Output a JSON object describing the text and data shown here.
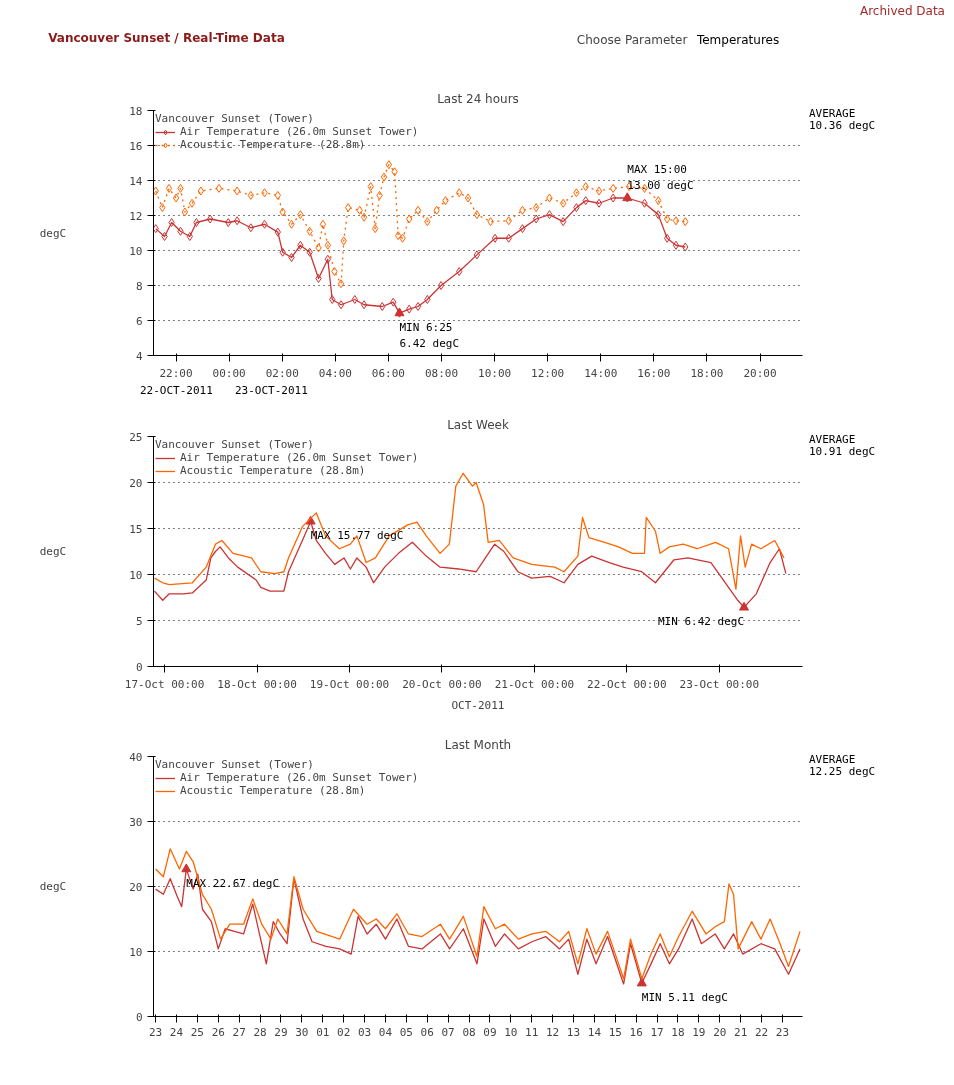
{
  "chart_data": [
    {
      "type": "other",
      "title": "Vancouver Sunset / Real-Time Data",
      "annotations": [
        "Archived Data",
        "Choose Parameter",
        "Temperatures"
      ]
    },
    {
      "type": "line",
      "title": "Last 24 hours",
      "ylabel": "degC",
      "legend_title": "Vancouver Sunset (Tower)",
      "legend": "top left",
      "grid": "y",
      "marker": "diamond",
      "xlim": [
        "2011-10-22T21:09",
        "2011-10-23T21:36"
      ],
      "ylim": [
        4,
        18
      ],
      "yticks": [
        4,
        6,
        8,
        10,
        12,
        14,
        16,
        18
      ],
      "xticks": [
        {
          "value": "2011-10-22T22:00",
          "label": "22:00"
        },
        {
          "value": "2011-10-23T00:00",
          "label": "00:00"
        },
        {
          "value": "2011-10-23T02:00",
          "label": "02:00"
        },
        {
          "value": "2011-10-23T04:00",
          "label": "04:00"
        },
        {
          "value": "2011-10-23T06:00",
          "label": "06:00"
        },
        {
          "value": "2011-10-23T08:00",
          "label": "08:00"
        },
        {
          "value": "2011-10-23T10:00",
          "label": "10:00"
        },
        {
          "value": "2011-10-23T12:00",
          "label": "12:00"
        },
        {
          "value": "2011-10-23T14:00",
          "label": "14:00"
        },
        {
          "value": "2011-10-23T16:00",
          "label": "16:00"
        },
        {
          "value": "2011-10-23T18:00",
          "label": "18:00"
        },
        {
          "value": "2011-10-23T20:00",
          "label": "20:00"
        }
      ],
      "series": [
        {
          "name": "Air Temperature (26.0m Sunset Tower)",
          "color": "#cc3333",
          "line_style": "solid",
          "x": [
            "2011-10-22T21:14",
            "2011-10-22T21:34",
            "2011-10-22T21:50",
            "2011-10-22T22:10",
            "2011-10-22T22:31",
            "2011-10-22T22:46",
            "2011-10-22T23:17",
            "2011-10-22T23:58",
            "2011-10-23T00:18",
            "2011-10-23T00:49",
            "2011-10-23T01:20",
            "2011-10-23T01:50",
            "2011-10-23T02:01",
            "2011-10-23T02:21",
            "2011-10-23T02:41",
            "2011-10-23T03:02",
            "2011-10-23T03:22",
            "2011-10-23T03:43",
            "2011-10-23T03:53",
            "2011-10-23T04:13",
            "2011-10-23T04:44",
            "2011-10-23T05:05",
            "2011-10-23T05:46",
            "2011-10-23T06:11",
            "2011-10-23T06:25",
            "2011-10-23T06:47",
            "2011-10-23T07:07",
            "2011-10-23T07:28",
            "2011-10-23T07:59",
            "2011-10-23T08:40",
            "2011-10-23T09:20",
            "2011-10-23T10:01",
            "2011-10-23T10:32",
            "2011-10-23T11:03",
            "2011-10-23T11:34",
            "2011-10-23T12:04",
            "2011-10-23T12:35",
            "2011-10-23T13:05",
            "2011-10-23T13:26",
            "2011-10-23T13:56",
            "2011-10-23T14:28",
            "2011-10-23T15:00",
            "2011-10-23T15:39",
            "2011-10-23T16:10",
            "2011-10-23T16:30",
            "2011-10-23T16:50",
            "2011-10-23T17:11"
          ],
          "values": [
            11.25,
            10.8,
            11.6,
            11.1,
            10.8,
            11.6,
            11.8,
            11.6,
            11.7,
            11.3,
            11.5,
            11.05,
            9.9,
            9.6,
            10.3,
            9.9,
            8.4,
            9.5,
            7.2,
            6.9,
            7.2,
            6.9,
            6.8,
            7.05,
            6.42,
            6.65,
            6.8,
            7.2,
            8.0,
            8.8,
            9.75,
            10.7,
            10.7,
            11.25,
            11.8,
            12.05,
            11.65,
            12.45,
            12.85,
            12.7,
            13.0,
            13.0,
            12.7,
            12.05,
            10.7,
            10.3,
            10.2
          ]
        },
        {
          "name": "Acoustic Temperature (28.8m)",
          "color": "#ff6600",
          "line_style": "dotted",
          "x": [
            "2011-10-22T21:14",
            "2011-10-22T21:29",
            "2011-10-22T21:44",
            "2011-10-22T22:00",
            "2011-10-22T22:10",
            "2011-10-22T22:20",
            "2011-10-22T22:36",
            "2011-10-22T22:56",
            "2011-10-22T23:37",
            "2011-10-23T00:18",
            "2011-10-23T00:49",
            "2011-10-23T01:20",
            "2011-10-23T01:50",
            "2011-10-23T02:01",
            "2011-10-23T02:21",
            "2011-10-23T02:41",
            "2011-10-23T03:02",
            "2011-10-23T03:22",
            "2011-10-23T03:32",
            "2011-10-23T03:43",
            "2011-10-23T03:58",
            "2011-10-23T04:13",
            "2011-10-23T04:19",
            "2011-10-23T04:29",
            "2011-10-23T04:55",
            "2011-10-23T05:05",
            "2011-10-23T05:20",
            "2011-10-23T05:30",
            "2011-10-23T05:40",
            "2011-10-23T05:50",
            "2011-10-23T06:01",
            "2011-10-23T06:14",
            "2011-10-23T06:22",
            "2011-10-23T06:32",
            "2011-10-23T06:47",
            "2011-10-23T07:07",
            "2011-10-23T07:28",
            "2011-10-23T07:49",
            "2011-10-23T08:09",
            "2011-10-23T08:40",
            "2011-10-23T09:00",
            "2011-10-23T09:20",
            "2011-10-23T09:51",
            "2011-10-23T10:32",
            "2011-10-23T11:03",
            "2011-10-23T11:34",
            "2011-10-23T12:04",
            "2011-10-23T12:35",
            "2011-10-23T13:05",
            "2011-10-23T13:26",
            "2011-10-23T13:56",
            "2011-10-23T14:28",
            "2011-10-23T15:04",
            "2011-10-23T15:39",
            "2011-10-23T16:10",
            "2011-10-23T16:30",
            "2011-10-23T16:50",
            "2011-10-23T17:11"
          ],
          "values": [
            13.4,
            12.45,
            13.55,
            13.0,
            13.55,
            12.2,
            12.7,
            13.4,
            13.55,
            13.4,
            13.15,
            13.3,
            13.15,
            12.2,
            11.5,
            12.05,
            11.1,
            10.15,
            11.5,
            10.3,
            8.8,
            8.1,
            10.55,
            12.45,
            12.3,
            11.9,
            13.65,
            11.25,
            13.15,
            14.2,
            14.9,
            14.5,
            10.85,
            10.7,
            11.8,
            12.3,
            11.65,
            12.3,
            12.85,
            13.3,
            13.0,
            12.05,
            11.65,
            11.7,
            12.3,
            12.45,
            13.0,
            12.7,
            13.3,
            13.65,
            13.4,
            13.55,
            13.65,
            13.55,
            12.85,
            11.8,
            11.7,
            11.65
          ]
        }
      ],
      "annotations": [
        "AVERAGE\n10.36 degC",
        "22-OCT-2011",
        "23-OCT-2011",
        {
          "text": "MIN 6:25\n6.42 degC",
          "x": "2011-10-23T06:25",
          "y": 6.42
        },
        {
          "text": "MAX 15:00\n13.00 degC",
          "x": "2011-10-23T15:00",
          "y": 13.0
        }
      ]
    },
    {
      "type": "line",
      "title": "Last Week",
      "ylabel": "degC",
      "xlabel": "OCT-2011",
      "legend_title": "Vancouver Sunset (Tower)",
      "legend": "top left",
      "grid": "y",
      "xlim": [
        "2011-10-16T21:07",
        "2011-10-23T21:36"
      ],
      "ylim": [
        0,
        25
      ],
      "yticks": [
        0,
        5,
        10,
        15,
        20,
        25
      ],
      "xticks": [
        {
          "value": "2011-10-17T00:00",
          "label": "17-Oct 00:00"
        },
        {
          "value": "2011-10-18T00:00",
          "label": "18-Oct 00:00"
        },
        {
          "value": "2011-10-19T00:00",
          "label": "19-Oct 00:00"
        },
        {
          "value": "2011-10-20T00:00",
          "label": "20-Oct 00:00"
        },
        {
          "value": "2011-10-21T00:00",
          "label": "21-Oct 00:00"
        },
        {
          "value": "2011-10-22T00:00",
          "label": "22-Oct 00:00"
        },
        {
          "value": "2011-10-23T00:00",
          "label": "23-Oct 00:00"
        }
      ],
      "series": [
        {
          "name": "Air Temperature (26.0m Sunset Tower)",
          "color": "#cc3333",
          "x": [
            "2011-10-16T21:22",
            "2011-10-16T23:31",
            "2011-10-17T01:12",
            "2011-10-17T04:48",
            "2011-10-17T07:12",
            "2011-10-17T10:48",
            "2011-10-17T12:00",
            "2011-10-17T13:12",
            "2011-10-17T14:24",
            "2011-10-17T16:34",
            "2011-10-17T18:58",
            "2011-10-17T23:46",
            "2011-10-18T00:58",
            "2011-10-18T03:22",
            "2011-10-18T06:58",
            "2011-10-18T08:10",
            "2011-10-18T11:46",
            "2011-10-18T13:55",
            "2011-10-18T15:22",
            "2011-10-18T17:46",
            "2011-10-18T20:10",
            "2011-10-18T22:34",
            "2011-10-19T00:14",
            "2011-10-19T01:55",
            "2011-10-19T04:19",
            "2011-10-19T06:14",
            "2011-10-19T09:07",
            "2011-10-19T12:43",
            "2011-10-19T16:19",
            "2011-10-19T19:55",
            "2011-10-19T23:31",
            "2011-10-20T04:19",
            "2011-10-20T08:53",
            "2011-10-20T11:17",
            "2011-10-20T13:41",
            "2011-10-20T16:05",
            "2011-10-20T19:41",
            "2011-10-20T23:17",
            "2011-10-21T04:05",
            "2011-10-21T07:41",
            "2011-10-21T11:17",
            "2011-10-21T14:53",
            "2011-10-21T19:26",
            "2011-10-21T23:02",
            "2011-10-22T03:50",
            "2011-10-22T07:26",
            "2011-10-22T12:14",
            "2011-10-22T15:50",
            "2011-10-22T21:50",
            "2011-10-23T02:24",
            "2011-10-23T04:48",
            "2011-10-23T06:25",
            "2011-10-23T09:36",
            "2011-10-23T13:12",
            "2011-10-23T15:36",
            "2011-10-23T17:17"
          ],
          "values": [
            8.2,
            7.2,
            7.9,
            7.9,
            8.0,
            9.4,
            11.8,
            12.5,
            13.0,
            11.8,
            10.8,
            9.4,
            8.6,
            8.2,
            8.2,
            10.3,
            13.7,
            15.77,
            13.7,
            12.3,
            11.1,
            11.8,
            10.6,
            11.8,
            10.8,
            9.1,
            10.8,
            12.3,
            13.5,
            12.0,
            10.8,
            10.6,
            10.3,
            11.8,
            13.3,
            12.5,
            10.3,
            9.6,
            9.8,
            9.1,
            11.1,
            12.0,
            11.3,
            10.8,
            10.3,
            9.1,
            11.6,
            11.8,
            11.3,
            8.6,
            7.2,
            6.42,
            7.9,
            11.3,
            12.8,
            10.1
          ]
        },
        {
          "name": "Acoustic Temperature (28.8m)",
          "color": "#ff6600",
          "x": [
            "2011-10-16T21:22",
            "2011-10-16T23:31",
            "2011-10-17T01:12",
            "2011-10-17T07:12",
            "2011-10-17T10:48",
            "2011-10-17T13:12",
            "2011-10-17T14:53",
            "2011-10-17T17:46",
            "2011-10-17T22:34",
            "2011-10-18T00:58",
            "2011-10-18T04:34",
            "2011-10-18T06:58",
            "2011-10-18T08:10",
            "2011-10-18T11:46",
            "2011-10-18T15:22",
            "2011-10-18T17:46",
            "2011-10-18T21:22",
            "2011-10-19T00:14",
            "2011-10-19T01:55",
            "2011-10-19T04:19",
            "2011-10-19T06:43",
            "2011-10-19T10:19",
            "2011-10-19T15:07",
            "2011-10-19T17:31",
            "2011-10-19T19:55",
            "2011-10-19T23:31",
            "2011-10-20T01:55",
            "2011-10-20T03:36",
            "2011-10-20T05:31",
            "2011-10-20T07:55",
            "2011-10-20T08:53",
            "2011-10-20T10:48",
            "2011-10-20T12:00",
            "2011-10-20T14:53",
            "2011-10-20T18:29",
            "2011-10-20T23:17",
            "2011-10-21T05:17",
            "2011-10-21T07:41",
            "2011-10-21T11:17",
            "2011-10-21T12:29",
            "2011-10-21T14:10",
            "2011-10-21T18:14",
            "2011-10-21T21:50",
            "2011-10-22T01:26",
            "2011-10-22T04:34",
            "2011-10-22T05:02",
            "2011-10-22T07:26",
            "2011-10-22T08:38",
            "2011-10-22T11:02",
            "2011-10-22T14:38",
            "2011-10-22T18:14",
            "2011-10-22T23:02",
            "2011-10-23T02:24",
            "2011-10-23T04:19",
            "2011-10-23T05:31",
            "2011-10-23T06:43",
            "2011-10-23T08:24",
            "2011-10-23T10:48",
            "2011-10-23T14:24",
            "2011-10-23T16:48"
          ],
          "values": [
            9.6,
            9.1,
            8.9,
            9.1,
            10.8,
            13.3,
            13.7,
            12.3,
            11.8,
            10.3,
            10.1,
            10.3,
            11.8,
            15.2,
            16.7,
            14.2,
            12.8,
            13.3,
            14.2,
            11.3,
            11.8,
            14.2,
            15.4,
            15.7,
            14.2,
            12.3,
            13.3,
            19.6,
            21.0,
            19.6,
            20.0,
            17.6,
            13.5,
            13.7,
            11.8,
            11.1,
            10.8,
            10.3,
            12.0,
            16.2,
            14.0,
            13.5,
            13.0,
            12.3,
            12.3,
            16.2,
            14.7,
            12.3,
            13.0,
            13.3,
            12.8,
            13.5,
            12.8,
            8.4,
            14.2,
            10.8,
            13.3,
            12.8,
            13.7,
            11.8
          ]
        }
      ],
      "annotations": [
        "AVERAGE\n10.91 degC",
        {
          "text": "MAX 15.77 degC",
          "x": "2011-10-18T13:55",
          "y": 15.77
        },
        {
          "text": "MIN 6.42 degC",
          "x": "2011-10-23T06:25",
          "y": 6.42
        }
      ]
    },
    {
      "type": "line",
      "title": "Last Month",
      "ylabel": "degC",
      "legend_title": "Vancouver Sunset (Tower)",
      "legend": "top left",
      "grid": "y",
      "xlim": [
        "2011-09-22T21:36",
        "2011-10-23T23:02"
      ],
      "ylim": [
        0,
        40
      ],
      "yticks": [
        0,
        10,
        20,
        30,
        40
      ],
      "xticks": [
        {
          "value": "2011-09-23",
          "label": "23"
        },
        {
          "value": "2011-09-24",
          "label": "24"
        },
        {
          "value": "2011-09-25",
          "label": "25"
        },
        {
          "value": "2011-09-26",
          "label": "26"
        },
        {
          "value": "2011-09-27",
          "label": "27"
        },
        {
          "value": "2011-09-28",
          "label": "28"
        },
        {
          "value": "2011-09-29",
          "label": "29"
        },
        {
          "value": "2011-09-30",
          "label": "30"
        },
        {
          "value": "2011-10-01",
          "label": "01"
        },
        {
          "value": "2011-10-02",
          "label": "02"
        },
        {
          "value": "2011-10-03",
          "label": "03"
        },
        {
          "value": "2011-10-04",
          "label": "04"
        },
        {
          "value": "2011-10-05",
          "label": "05"
        },
        {
          "value": "2011-10-06",
          "label": "06"
        },
        {
          "value": "2011-10-07",
          "label": "07"
        },
        {
          "value": "2011-10-08",
          "label": "08"
        },
        {
          "value": "2011-10-09",
          "label": "09"
        },
        {
          "value": "2011-10-10",
          "label": "10"
        },
        {
          "value": "2011-10-11",
          "label": "11"
        },
        {
          "value": "2011-10-12",
          "label": "12"
        },
        {
          "value": "2011-10-13",
          "label": "13"
        },
        {
          "value": "2011-10-14",
          "label": "14"
        },
        {
          "value": "2011-10-15",
          "label": "15"
        },
        {
          "value": "2011-10-16",
          "label": "16"
        },
        {
          "value": "2011-10-17",
          "label": "17"
        },
        {
          "value": "2011-10-18",
          "label": "18"
        },
        {
          "value": "2011-10-19",
          "label": "19"
        },
        {
          "value": "2011-10-20",
          "label": "20"
        },
        {
          "value": "2011-10-21",
          "label": "21"
        },
        {
          "value": "2011-10-22",
          "label": "22"
        },
        {
          "value": "2011-10-23",
          "label": "23"
        }
      ],
      "series": [
        {
          "name": "Air Temperature (26.0m Sunset Tower)",
          "color": "#cc3333",
          "x": [
            "2011-09-23T00:00",
            "2011-09-23T08:53",
            "2011-09-23T16:48",
            "2011-09-24T00:43",
            "2011-09-24T06:00",
            "2011-09-24T11:17",
            "2011-09-24T19:12",
            "2011-09-25T00:29",
            "2011-09-25T05:46",
            "2011-09-25T16:05",
            "2011-09-26T00:00",
            "2011-09-26T07:55",
            "2011-09-26T18:29",
            "2011-09-27T05:02",
            "2011-09-27T15:36",
            "2011-09-27T23:17",
            "2011-09-28T07:12",
            "2011-09-28T15:07",
            "2011-09-28T23:02",
            "2011-09-29T06:58",
            "2011-09-29T14:53",
            "2011-09-30T01:26",
            "2011-09-30T11:46",
            "2011-10-01T03:36",
            "2011-10-01T19:26",
            "2011-10-02T08:38",
            "2011-10-02T16:34",
            "2011-10-03T02:53",
            "2011-10-03T13:26",
            "2011-10-04T00:00",
            "2011-10-04T13:12",
            "2011-10-05T02:24",
            "2011-10-05T18:00",
            "2011-10-06T15:07",
            "2011-10-07T01:41",
            "2011-10-07T17:31",
            "2011-10-08T09:07",
            "2011-10-08T17:02",
            "2011-10-09T06:14",
            "2011-10-09T16:48",
            "2011-10-10T08:38",
            "2011-10-11T00:14",
            "2011-10-11T16:05",
            "2011-10-12T07:55",
            "2011-10-12T18:29",
            "2011-10-13T05:02",
            "2011-10-13T15:22",
            "2011-10-14T01:55",
            "2011-10-14T15:07",
            "2011-10-15T09:36",
            "2011-10-15T17:31",
            "2011-10-16T06:29",
            "2011-10-16T17:02",
            "2011-10-17T03:36",
            "2011-10-17T14:10",
            "2011-10-18T00:43",
            "2011-10-18T16:19",
            "2011-10-19T02:53",
            "2011-10-19T18:43",
            "2011-10-20T05:17",
            "2011-10-20T15:50",
            "2011-10-21T02:24",
            "2011-10-21T23:17",
            "2011-10-22T15:07",
            "2011-10-23T06:58",
            "2011-10-23T20:10"
          ],
          "values": [
            19.6,
            18.8,
            21.2,
            18.5,
            16.9,
            22.67,
            19.6,
            21.9,
            16.5,
            14.6,
            10.4,
            13.5,
            13.1,
            12.7,
            17.3,
            12.7,
            8.1,
            14.6,
            12.7,
            11.2,
            21.2,
            15.0,
            11.5,
            10.8,
            10.4,
            9.6,
            15.4,
            12.7,
            14.2,
            11.9,
            15.0,
            10.8,
            10.4,
            12.7,
            10.4,
            13.5,
            8.1,
            15.0,
            10.8,
            12.7,
            10.4,
            11.5,
            12.3,
            10.4,
            11.9,
            6.5,
            11.9,
            8.1,
            12.3,
            5.0,
            11.2,
            5.11,
            8.1,
            11.2,
            8.1,
            10.4,
            15.0,
            11.2,
            12.7,
            10.4,
            12.7,
            9.6,
            11.2,
            10.4,
            6.5,
            10.4
          ]
        },
        {
          "name": "Acoustic Temperature (28.8m)",
          "color": "#ff6600",
          "x": [
            "2011-09-23T00:00",
            "2011-09-23T08:53",
            "2011-09-23T16:48",
            "2011-09-24T03:22",
            "2011-09-24T11:17",
            "2011-09-24T19:12",
            "2011-09-25T05:46",
            "2011-09-25T16:05",
            "2011-09-26T02:38",
            "2011-09-26T13:12",
            "2011-09-27T05:02",
            "2011-09-27T15:36",
            "2011-09-28T01:55",
            "2011-09-28T12:29",
            "2011-09-28T20:24",
            "2011-09-29T06:58",
            "2011-09-29T14:53",
            "2011-09-30T01:26",
            "2011-09-30T17:02",
            "2011-10-01T19:26",
            "2011-10-02T11:17",
            "2011-10-03T02:53",
            "2011-10-03T13:26",
            "2011-10-04T00:00",
            "2011-10-04T13:12",
            "2011-10-05T02:24",
            "2011-10-05T18:00",
            "2011-10-06T15:07",
            "2011-10-07T01:41",
            "2011-10-07T17:31",
            "2011-10-08T09:07",
            "2011-10-08T17:02",
            "2011-10-09T06:14",
            "2011-10-09T16:48",
            "2011-10-10T08:38",
            "2011-10-11T00:14",
            "2011-10-11T16:05",
            "2011-10-12T07:55",
            "2011-10-12T18:29",
            "2011-10-13T05:02",
            "2011-10-13T15:22",
            "2011-10-14T01:55",
            "2011-10-14T15:07",
            "2011-10-15T09:36",
            "2011-10-15T17:31",
            "2011-10-16T06:29",
            "2011-10-16T17:02",
            "2011-10-17T03:36",
            "2011-10-17T14:10",
            "2011-10-18T00:43",
            "2011-10-18T16:19",
            "2011-10-19T08:10",
            "2011-10-19T18:43",
            "2011-10-20T05:17",
            "2011-10-20T10:34",
            "2011-10-20T15:50",
            "2011-10-20T21:07",
            "2011-10-21T12:43",
            "2011-10-21T23:17",
            "2011-10-22T09:50",
            "2011-10-22T20:24",
            "2011-10-23T06:58",
            "2011-10-23T20:10"
          ],
          "values": [
            22.7,
            21.5,
            25.8,
            22.7,
            25.4,
            23.8,
            18.8,
            16.5,
            11.9,
            14.2,
            14.2,
            18.1,
            14.2,
            11.9,
            15.0,
            12.7,
            21.5,
            16.5,
            13.1,
            11.9,
            16.5,
            14.2,
            15.0,
            13.5,
            15.8,
            12.7,
            12.3,
            14.2,
            11.9,
            15.4,
            9.2,
            16.9,
            13.5,
            14.2,
            11.9,
            12.7,
            13.1,
            11.5,
            13.1,
            8.1,
            13.5,
            9.6,
            13.1,
            5.8,
            11.9,
            5.8,
            9.6,
            12.7,
            9.2,
            12.3,
            16.2,
            12.7,
            13.8,
            14.6,
            20.4,
            18.8,
            10.4,
            14.6,
            11.9,
            15.0,
            11.5,
            7.7,
            13.1
          ]
        }
      ],
      "annotations": [
        "AVERAGE\n12.25 degC",
        {
          "text": "MAX 22.67 degC",
          "x": "2011-09-24T11:17",
          "y": 22.67
        },
        {
          "text": "MIN 5.11 degC",
          "x": "2011-10-16T06:29",
          "y": 5.11
        }
      ]
    }
  ]
}
